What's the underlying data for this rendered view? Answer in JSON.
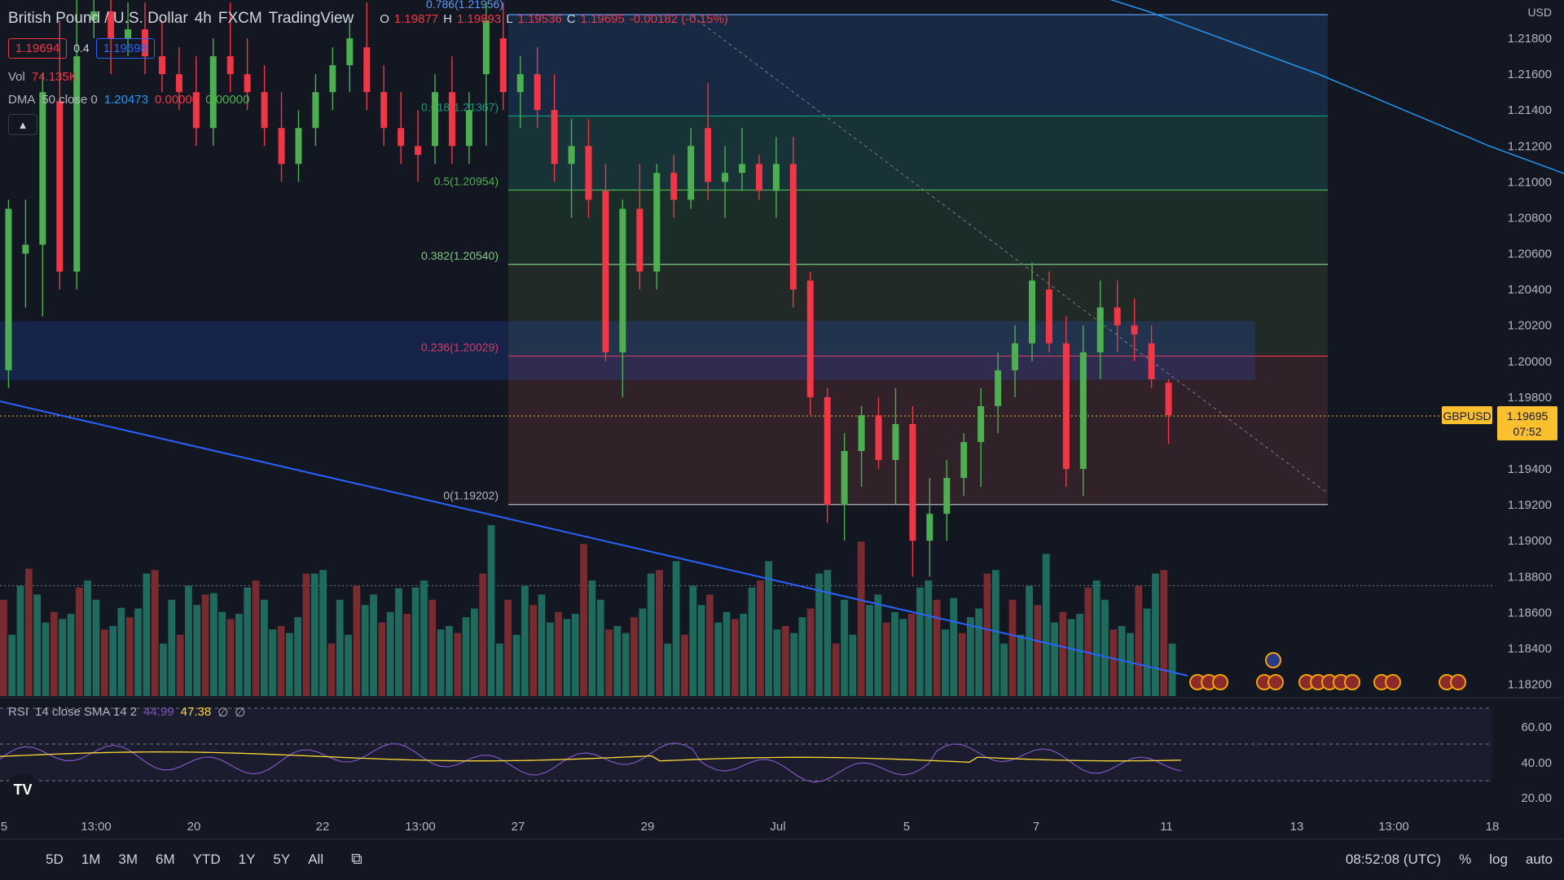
{
  "header": {
    "symbol_title": "British Pound / U.S. Dollar",
    "interval": "4h",
    "exchange": "FXCM",
    "platform": "TradingView",
    "ohlc": [
      {
        "k": "O",
        "v": "1.19877"
      },
      {
        "k": "H",
        "v": "1.19893"
      },
      {
        "k": "L",
        "v": "1.19536"
      },
      {
        "k": "C",
        "v": "1.19695"
      },
      {
        "k": "",
        "v": "-0.00182 (-0.15%)"
      }
    ],
    "sell_price": "1.19694",
    "spread": "0.4",
    "buy_price": "1.19698"
  },
  "indicators": {
    "volume_label": "Vol",
    "volume_value": "74.135K",
    "dma_label": "DMA",
    "dma_params": "50 close 0",
    "dma_values": [
      "1.20473",
      "0.00000",
      "0.00000"
    ],
    "rsi_label": "RSI",
    "rsi_params": "14 close SMA 14 2",
    "rsi_values": [
      "44.99",
      "47.38",
      "∅",
      "∅"
    ]
  },
  "price_axis": {
    "currency": "USD",
    "ticks": [
      "1.21800",
      "1.21600",
      "1.21400",
      "1.21200",
      "1.21000",
      "1.20800",
      "1.20600",
      "1.20400",
      "1.20200",
      "1.20000",
      "1.19800",
      "1.19400",
      "1.19200",
      "1.19000",
      "1.18800",
      "1.18600",
      "1.18400",
      "1.18200"
    ],
    "current_symbol": "GBPUSD",
    "current_price": "1.19695",
    "countdown": "07:52"
  },
  "rsi_axis": {
    "ticks": [
      "60.00",
      "40.00",
      "20.00"
    ]
  },
  "time_axis": {
    "ticks": [
      "5",
      "13:00",
      "20",
      "22",
      "13:00",
      "27",
      "29",
      "Jul",
      "5",
      "7",
      "11",
      "13",
      "13:00",
      "18"
    ]
  },
  "fibonacci": [
    {
      "label": "0.786(1.21956)",
      "price": 1.21956,
      "color": "#5b9cf6"
    },
    {
      "label": "0.618(1.21367)",
      "price": 1.21367,
      "color": "#089981"
    },
    {
      "label": "0.5(1.20954)",
      "price": 1.20954,
      "color": "#4caf50"
    },
    {
      "label": "0.382(1.20540)",
      "price": 1.2054,
      "color": "#81c784"
    },
    {
      "label": "0.236(1.20029)",
      "price": 1.20029,
      "color": "#f23645"
    },
    {
      "label": "0(1.19202)",
      "price": 1.19202,
      "color": "#b2b5be"
    }
  ],
  "bottom_bar": {
    "timeframes": [
      "5D",
      "1M",
      "3M",
      "6M",
      "YTD",
      "1Y",
      "5Y",
      "All"
    ],
    "clock": "08:52:08 (UTC)",
    "percent_label": "%",
    "log_label": "log",
    "auto_label": "auto"
  },
  "colors": {
    "background": "#131722",
    "bull": "#4caf50",
    "bear": "#f23645",
    "vol_bull": "#1e6b5e",
    "vol_bear": "#7a2b30",
    "ma": "#2196f3",
    "rsi": "#7e57c2",
    "rsi_ma": "#fdd835",
    "trendline": "#2962ff",
    "price_line": "#fbc02d"
  },
  "chart_data": {
    "type": "candlestick",
    "symbol": "GBPUSD",
    "interval": "4h",
    "ylim": [
      1.1805,
      1.2205
    ],
    "candles": [
      [
        1.1995,
        1.209,
        1.1985,
        1.2085
      ],
      [
        1.206,
        1.209,
        1.203,
        1.2065
      ],
      [
        1.2065,
        1.216,
        1.2025,
        1.215
      ],
      [
        1.2145,
        1.219,
        1.204,
        1.205
      ],
      [
        1.205,
        1.223,
        1.204,
        1.217
      ],
      [
        1.219,
        1.2205,
        1.218,
        1.2195
      ],
      [
        1.2195,
        1.221,
        1.216,
        1.218
      ],
      [
        1.218,
        1.22,
        1.217,
        1.2185
      ],
      [
        1.2185,
        1.22,
        1.216,
        1.217
      ],
      [
        1.217,
        1.219,
        1.215,
        1.216
      ],
      [
        1.216,
        1.2175,
        1.214,
        1.215
      ],
      [
        1.215,
        1.217,
        1.212,
        1.213
      ],
      [
        1.213,
        1.218,
        1.212,
        1.217
      ],
      [
        1.217,
        1.22,
        1.215,
        1.216
      ],
      [
        1.216,
        1.218,
        1.214,
        1.215
      ],
      [
        1.215,
        1.2165,
        1.212,
        1.213
      ],
      [
        1.213,
        1.215,
        1.21,
        1.211
      ],
      [
        1.211,
        1.214,
        1.21,
        1.213
      ],
      [
        1.213,
        1.216,
        1.212,
        1.215
      ],
      [
        1.215,
        1.2175,
        1.214,
        1.2165
      ],
      [
        1.2165,
        1.219,
        1.215,
        1.218
      ],
      [
        1.2175,
        1.22,
        1.214,
        1.215
      ],
      [
        1.215,
        1.2165,
        1.212,
        1.213
      ],
      [
        1.213,
        1.215,
        1.211,
        1.212
      ],
      [
        1.212,
        1.214,
        1.21,
        1.2115
      ],
      [
        1.212,
        1.216,
        1.211,
        1.215
      ],
      [
        1.215,
        1.217,
        1.211,
        1.212
      ],
      [
        1.212,
        1.215,
        1.211,
        1.214
      ],
      [
        1.216,
        1.22,
        1.212,
        1.219
      ],
      [
        1.218,
        1.22,
        1.214,
        1.215
      ],
      [
        1.215,
        1.217,
        1.213,
        1.216
      ],
      [
        1.216,
        1.2175,
        1.213,
        1.214
      ],
      [
        1.214,
        1.216,
        1.21,
        1.211
      ],
      [
        1.211,
        1.2135,
        1.208,
        1.212
      ],
      [
        1.212,
        1.2135,
        1.208,
        1.209
      ],
      [
        1.2095,
        1.211,
        1.2,
        1.2005
      ],
      [
        1.2005,
        1.209,
        1.198,
        1.2085
      ],
      [
        1.2085,
        1.211,
        1.204,
        1.205
      ],
      [
        1.205,
        1.211,
        1.204,
        1.2105
      ],
      [
        1.2105,
        1.2115,
        1.208,
        1.209
      ],
      [
        1.209,
        1.213,
        1.2085,
        1.212
      ],
      [
        1.213,
        1.2155,
        1.209,
        1.21
      ],
      [
        1.21,
        1.212,
        1.208,
        1.2105
      ],
      [
        1.2105,
        1.213,
        1.2095,
        1.211
      ],
      [
        1.211,
        1.2115,
        1.209,
        1.2095
      ],
      [
        1.2095,
        1.2125,
        1.208,
        1.211
      ],
      [
        1.211,
        1.2125,
        1.203,
        1.204
      ],
      [
        1.2045,
        1.205,
        1.197,
        1.198
      ],
      [
        1.198,
        1.1985,
        1.191,
        1.192
      ],
      [
        1.192,
        1.196,
        1.19,
        1.195
      ],
      [
        1.195,
        1.1975,
        1.193,
        1.197
      ],
      [
        1.197,
        1.198,
        1.194,
        1.1945
      ],
      [
        1.1945,
        1.1985,
        1.192,
        1.1965
      ],
      [
        1.1965,
        1.1975,
        1.188,
        1.19
      ],
      [
        1.19,
        1.1935,
        1.188,
        1.1915
      ],
      [
        1.1915,
        1.1945,
        1.19,
        1.1935
      ],
      [
        1.1935,
        1.196,
        1.1925,
        1.1955
      ],
      [
        1.1955,
        1.1985,
        1.193,
        1.1975
      ],
      [
        1.1975,
        1.2005,
        1.196,
        1.1995
      ],
      [
        1.1995,
        1.202,
        1.198,
        1.201
      ],
      [
        1.201,
        1.2055,
        1.2,
        1.2045
      ],
      [
        1.204,
        1.205,
        1.2005,
        1.201
      ],
      [
        1.201,
        1.2025,
        1.193,
        1.194
      ],
      [
        1.194,
        1.202,
        1.1925,
        1.2005
      ],
      [
        1.2005,
        1.2045,
        1.199,
        1.203
      ],
      [
        1.203,
        1.2045,
        1.2005,
        1.202
      ],
      [
        1.202,
        1.2035,
        1.2,
        1.2015
      ],
      [
        1.201,
        1.202,
        1.1985,
        1.199
      ],
      [
        1.1988,
        1.199,
        1.1954,
        1.197
      ]
    ],
    "moving_average": {
      "name": "DMA 50 close 0",
      "points": [
        [
          0,
          1.224
        ],
        [
          10,
          1.2225
        ],
        [
          20,
          1.2195
        ],
        [
          30,
          1.216
        ],
        [
          40,
          1.212
        ],
        [
          50,
          1.2085
        ],
        [
          60,
          1.206
        ],
        [
          68,
          1.2047
        ]
      ]
    },
    "volume_max_k": 180,
    "rsi_range": [
      10,
      75
    ]
  }
}
